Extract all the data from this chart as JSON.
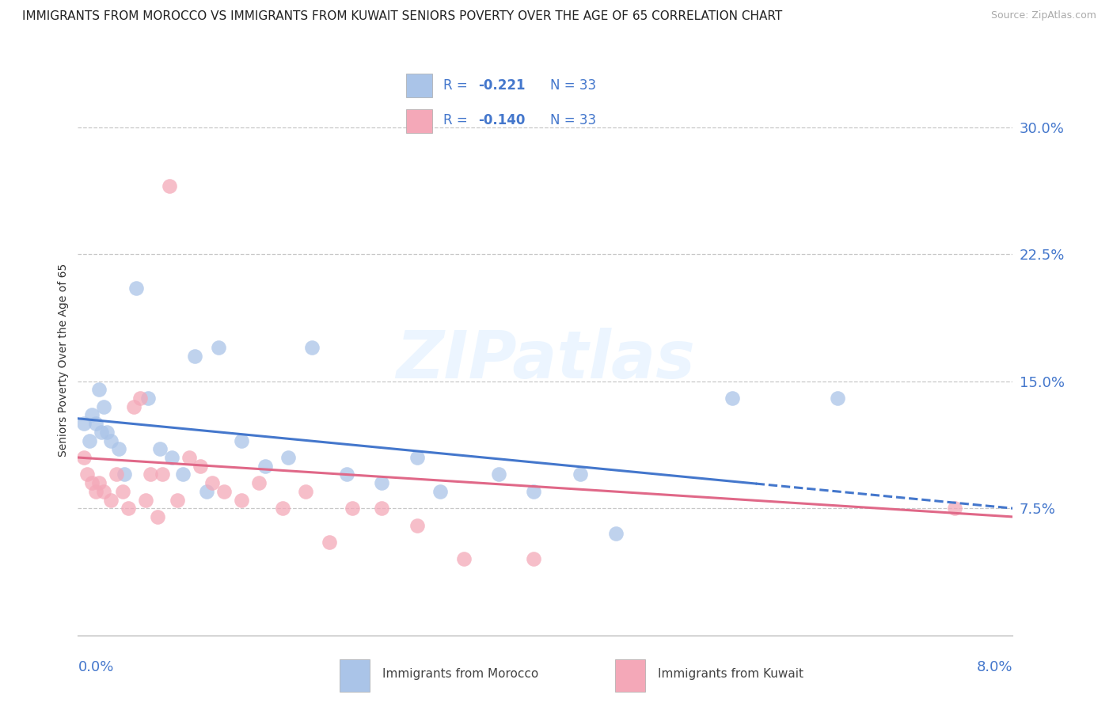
{
  "title": "IMMIGRANTS FROM MOROCCO VS IMMIGRANTS FROM KUWAIT SENIORS POVERTY OVER THE AGE OF 65 CORRELATION CHART",
  "source": "Source: ZipAtlas.com",
  "ylabel": "Seniors Poverty Over the Age of 65",
  "xlim": [
    0.0,
    8.0
  ],
  "ylim": [
    0.0,
    32.5
  ],
  "yticks_right": [
    7.5,
    15.0,
    22.5,
    30.0
  ],
  "ytick_labels_right": [
    "7.5%",
    "15.0%",
    "22.5%",
    "30.0%"
  ],
  "grid_color": "#c8c8c8",
  "background_color": "#ffffff",
  "morocco_color": "#aac4e8",
  "kuwait_color": "#f4a8b8",
  "morocco_trend_color": "#4477cc",
  "kuwait_trend_color": "#e06888",
  "legend_text_color": "#4477cc",
  "morocco_label": "Immigrants from Morocco",
  "kuwait_label": "Immigrants from Kuwait",
  "morocco_R": "-0.221",
  "morocco_N": "33",
  "kuwait_R": "-0.140",
  "kuwait_N": "33",
  "morocco_scatter_x": [
    0.05,
    0.1,
    0.12,
    0.15,
    0.18,
    0.2,
    0.22,
    0.25,
    0.28,
    0.35,
    0.4,
    0.5,
    0.6,
    0.7,
    0.8,
    0.9,
    1.0,
    1.1,
    1.2,
    1.4,
    1.6,
    1.8,
    2.0,
    2.3,
    2.6,
    2.9,
    3.1,
    3.6,
    3.9,
    4.3,
    4.6,
    5.6,
    6.5
  ],
  "morocco_scatter_y": [
    12.5,
    11.5,
    13.0,
    12.5,
    14.5,
    12.0,
    13.5,
    12.0,
    11.5,
    11.0,
    9.5,
    20.5,
    14.0,
    11.0,
    10.5,
    9.5,
    16.5,
    8.5,
    17.0,
    11.5,
    10.0,
    10.5,
    17.0,
    9.5,
    9.0,
    10.5,
    8.5,
    9.5,
    8.5,
    9.5,
    6.0,
    14.0,
    14.0
  ],
  "kuwait_scatter_x": [
    0.05,
    0.08,
    0.12,
    0.15,
    0.18,
    0.22,
    0.28,
    0.33,
    0.38,
    0.43,
    0.48,
    0.53,
    0.58,
    0.62,
    0.68,
    0.72,
    0.78,
    0.85,
    0.95,
    1.05,
    1.15,
    1.25,
    1.4,
    1.55,
    1.75,
    1.95,
    2.15,
    2.35,
    2.6,
    2.9,
    3.3,
    3.9,
    7.5
  ],
  "kuwait_scatter_y": [
    10.5,
    9.5,
    9.0,
    8.5,
    9.0,
    8.5,
    8.0,
    9.5,
    8.5,
    7.5,
    13.5,
    14.0,
    8.0,
    9.5,
    7.0,
    9.5,
    26.5,
    8.0,
    10.5,
    10.0,
    9.0,
    8.5,
    8.0,
    9.0,
    7.5,
    8.5,
    5.5,
    7.5,
    7.5,
    6.5,
    4.5,
    4.5,
    7.5
  ],
  "morocco_trend_y0": 12.8,
  "morocco_trend_y1": 7.5,
  "kuwait_trend_y0": 10.5,
  "kuwait_trend_y1": 7.0,
  "morocco_dash_split_x": 5.8,
  "watermark": "ZIPatlas",
  "title_fontsize": 11,
  "source_fontsize": 9,
  "tick_color": "#4477cc",
  "tick_fontsize": 13,
  "ylabel_fontsize": 10,
  "legend_fontsize": 12,
  "scatter_size": 180
}
